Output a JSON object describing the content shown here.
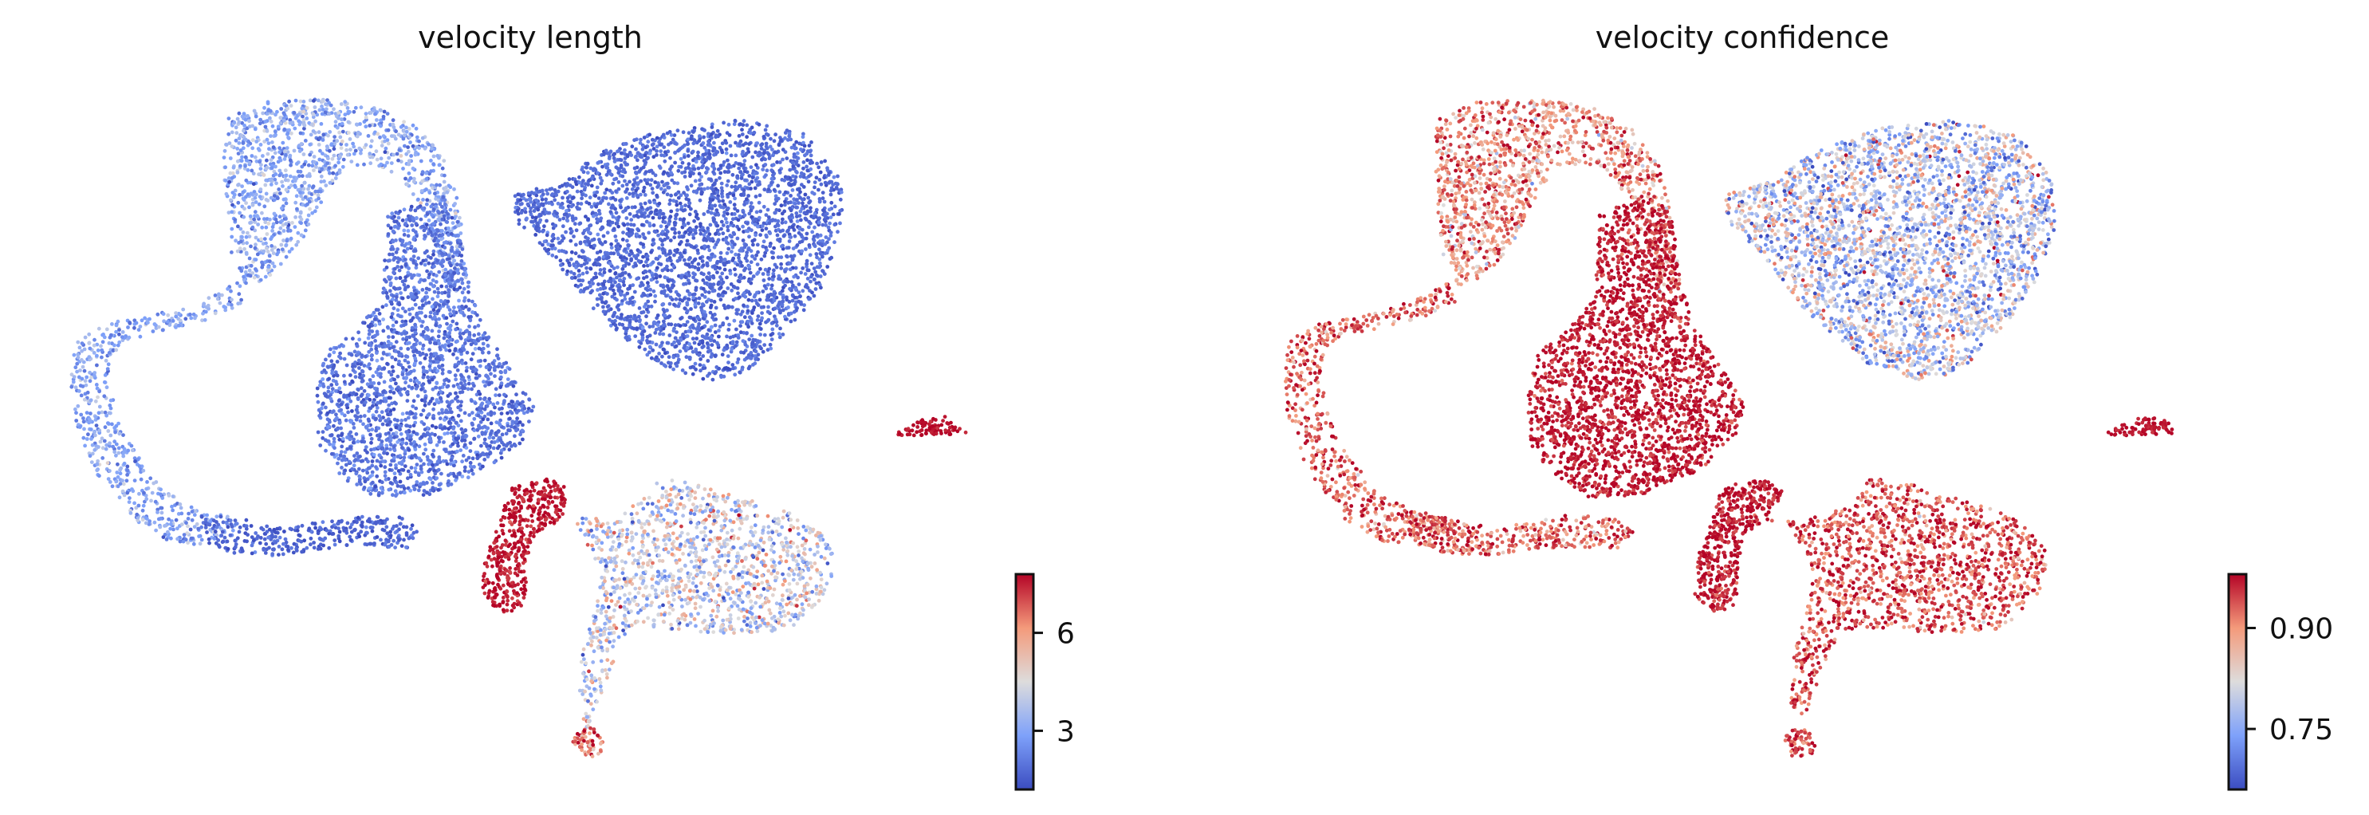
{
  "chart_data": [
    {
      "type": "scatter",
      "title": "velocity length",
      "xlabel": "",
      "ylabel": "",
      "grid": false,
      "colormap": "coolwarm",
      "colorbar": {
        "min": 1.2,
        "max": 7.8,
        "ticks": [
          {
            "value": 3,
            "label": "3"
          },
          {
            "value": 6,
            "label": "6"
          }
        ]
      },
      "clusters": [
        {
          "name": "left-loop-top",
          "value_mean": 3.1,
          "value_spread": 0.7
        },
        {
          "name": "left-loop-left-arc",
          "value_mean": 2.9,
          "value_spread": 0.6
        },
        {
          "name": "left-loop-bottom",
          "value_mean": 1.7,
          "value_spread": 0.3
        },
        {
          "name": "center-blob",
          "value_mean": 2.0,
          "value_spread": 0.4
        },
        {
          "name": "upper-right-triangle",
          "value_mean": 1.8,
          "value_spread": 0.3
        },
        {
          "name": "lower-right-fan",
          "value_mean": 4.2,
          "value_spread": 1.2
        },
        {
          "name": "lower-left-spot",
          "value_mean": 7.6,
          "value_spread": 0.3
        },
        {
          "name": "far-right-island",
          "value_mean": 7.7,
          "value_spread": 0.2
        },
        {
          "name": "bottom-tail",
          "value_mean": 6.5,
          "value_spread": 1.0
        }
      ]
    },
    {
      "type": "scatter",
      "title": "velocity confidence",
      "xlabel": "",
      "ylabel": "",
      "grid": false,
      "colormap": "coolwarm",
      "colorbar": {
        "min": 0.66,
        "max": 0.98,
        "ticks": [
          {
            "value": 0.75,
            "label": "0.75"
          },
          {
            "value": 0.9,
            "label": "0.90"
          }
        ]
      },
      "clusters": [
        {
          "name": "left-loop-top",
          "value_mean": 0.9,
          "value_spread": 0.05
        },
        {
          "name": "left-loop-left-arc",
          "value_mean": 0.93,
          "value_spread": 0.04
        },
        {
          "name": "left-loop-bottom",
          "value_mean": 0.93,
          "value_spread": 0.04
        },
        {
          "name": "center-blob",
          "value_mean": 0.97,
          "value_spread": 0.02
        },
        {
          "name": "upper-right-triangle",
          "value_mean": 0.79,
          "value_spread": 0.07
        },
        {
          "name": "lower-right-fan",
          "value_mean": 0.94,
          "value_spread": 0.04
        },
        {
          "name": "lower-left-spot",
          "value_mean": 0.97,
          "value_spread": 0.02
        },
        {
          "name": "far-right-island",
          "value_mean": 0.97,
          "value_spread": 0.01
        },
        {
          "name": "bottom-tail",
          "value_mean": 0.95,
          "value_spread": 0.03
        }
      ]
    }
  ]
}
